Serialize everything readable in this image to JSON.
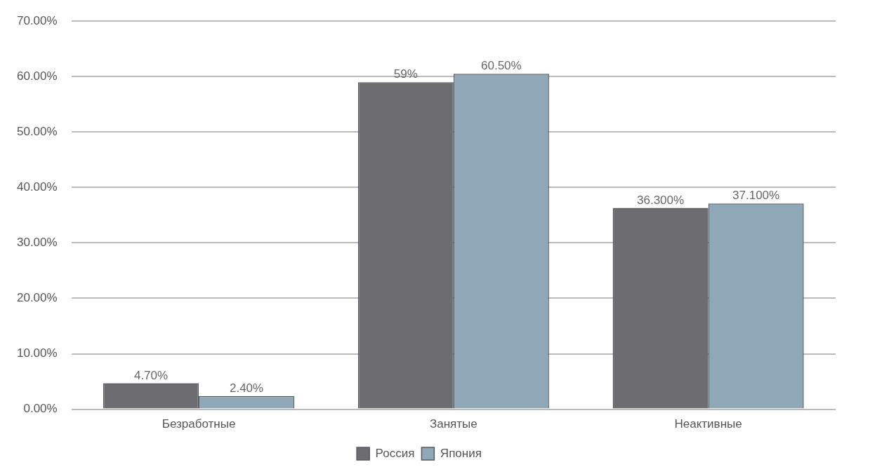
{
  "chart_data": {
    "type": "bar",
    "categories": [
      "Безработные",
      "Занятые",
      "Неактивные"
    ],
    "series": [
      {
        "name": "Россия",
        "color": "#6d6c71",
        "values": [
          4.7,
          59,
          36.3
        ],
        "value_labels": [
          "4.70%",
          "59%",
          "36.300%"
        ]
      },
      {
        "name": "Япония",
        "color": "#8fa8b8",
        "values": [
          2.4,
          60.5,
          37.1
        ],
        "value_labels": [
          "2.40%",
          "60.50%",
          "37.100%"
        ]
      }
    ],
    "ylim": [
      0,
      70
    ],
    "yticks": [
      {
        "value": 0,
        "label": "0.00%"
      },
      {
        "value": 10,
        "label": "10.00%"
      },
      {
        "value": 20,
        "label": "20.00%"
      },
      {
        "value": 30,
        "label": "30.00%"
      },
      {
        "value": 40,
        "label": "40.00%"
      },
      {
        "value": 50,
        "label": "50.00%"
      },
      {
        "value": 60,
        "label": "60.00%"
      },
      {
        "value": 70,
        "label": "70.00%"
      }
    ],
    "grid": "y",
    "legend": "bottom"
  }
}
